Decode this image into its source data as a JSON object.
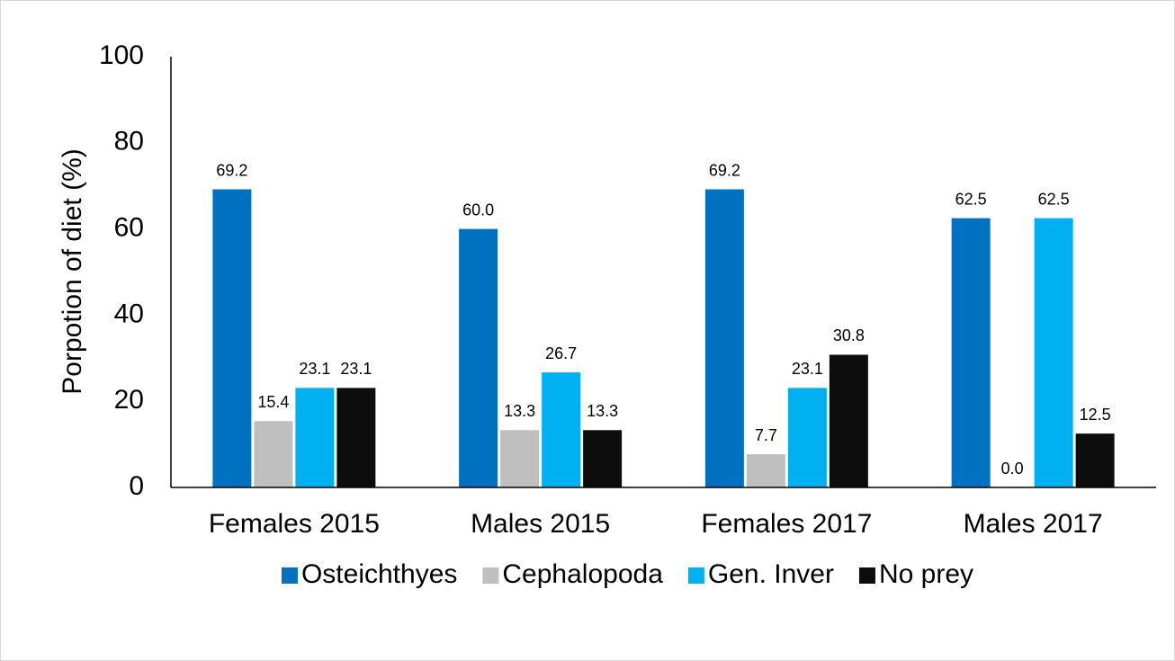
{
  "chart_data": {
    "type": "bar",
    "y_label": "Porpotion of diet (%)",
    "categories": [
      "Females 2015",
      "Males 2015",
      "Females 2017",
      "Males 2017"
    ],
    "series": [
      {
        "name": "Osteichthyes",
        "color": "#0070c0",
        "values": [
          69.2,
          60,
          69.2,
          62.5
        ],
        "value_labels": [
          "69.2",
          "60.0",
          "69.2",
          "62.5"
        ]
      },
      {
        "name": "Cephalopoda",
        "color": "#bfbfbf",
        "values": [
          15.4,
          13.3,
          7.7,
          0
        ],
        "value_labels": [
          "15.4",
          "13.3",
          "7.7",
          "0.0"
        ]
      },
      {
        "name": "Gen. Inver",
        "color": "#00b0f0",
        "values": [
          23.1,
          26.7,
          23.1,
          62.5
        ],
        "value_labels": [
          "23.1",
          "26.7",
          "23.1",
          "62.5"
        ]
      },
      {
        "name": "No prey",
        "color": "#0d0d0d",
        "values": [
          23.1,
          13.3,
          30.8,
          12.5
        ],
        "value_labels": [
          "23.1",
          "13.3",
          "30.8",
          "12.5"
        ]
      }
    ],
    "ylim": [
      0,
      100
    ],
    "yticks": [
      0,
      20,
      40,
      60,
      80,
      100
    ],
    "grid": false,
    "legend": "bottom"
  }
}
